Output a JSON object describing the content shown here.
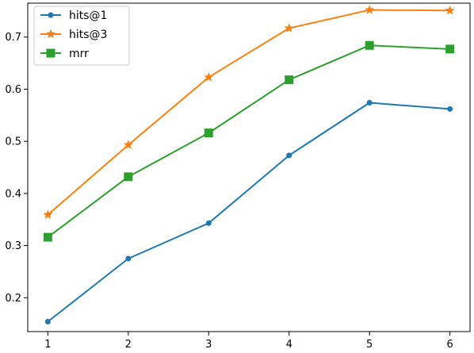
{
  "chart_data": {
    "type": "line",
    "title": "",
    "xlabel": "",
    "ylabel": "",
    "x": [
      1,
      2,
      3,
      4,
      5,
      6
    ],
    "xlim": [
      0.75,
      6.25
    ],
    "ylim": [
      0.135,
      0.765
    ],
    "xticks": [
      1,
      2,
      3,
      4,
      5,
      6
    ],
    "yticks": [
      0.2,
      0.3,
      0.4,
      0.5,
      0.6,
      0.7
    ],
    "grid": false,
    "legend_position": "top-left",
    "series": [
      {
        "name": "hits@1",
        "color": "#1f77b4",
        "marker": "circle",
        "values": [
          0.154,
          0.275,
          0.343,
          0.473,
          0.574,
          0.562
        ]
      },
      {
        "name": "hits@3",
        "color": "#ff7f0e",
        "marker": "star",
        "values": [
          0.359,
          0.493,
          0.623,
          0.717,
          0.752,
          0.751
        ]
      },
      {
        "name": "mrr",
        "color": "#2ca02c",
        "marker": "square",
        "values": [
          0.316,
          0.432,
          0.516,
          0.618,
          0.684,
          0.677
        ]
      }
    ]
  }
}
